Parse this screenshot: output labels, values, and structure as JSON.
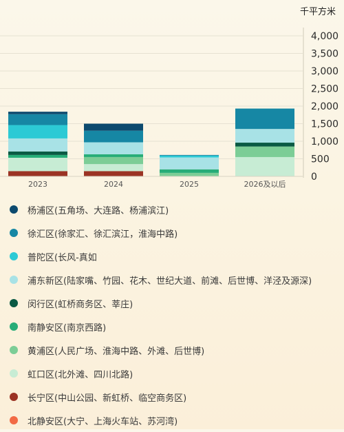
{
  "chart_data": {
    "type": "bar",
    "stacked": true,
    "unit": "千平方米",
    "categories": [
      "2023",
      "2024",
      "2025",
      "2026及以后"
    ],
    "ylim": [
      0,
      4000
    ],
    "yticks": [
      "0",
      "500",
      "1,000",
      "1,500",
      "2,000",
      "2,500",
      "3,000",
      "3,500",
      "4,000"
    ],
    "ytick_values": [
      0,
      500,
      1000,
      1500,
      2000,
      2500,
      3000,
      3500,
      4000
    ],
    "y_axis_position": "right",
    "grid": true,
    "legend_position": "bottom",
    "series": [
      {
        "name": "长宁区(中山公园、新虹桥、临空商务区)",
        "color": "#9b3324",
        "values": [
          150,
          150,
          0,
          0
        ]
      },
      {
        "name": "北静安区(大宁、上海火车站、苏河湾)",
        "color": "#f26a45",
        "values": [
          0,
          0,
          0,
          0
        ]
      },
      {
        "name": "虹口区(北外滩、四川北路)",
        "color": "#c7ecd4",
        "values": [
          380,
          200,
          0,
          550
        ]
      },
      {
        "name": "黄浦区(人民广场、淮海中路、外滩、后世博)",
        "color": "#7ccd96",
        "values": [
          0,
          200,
          100,
          300
        ]
      },
      {
        "name": "南静安区(南京西路)",
        "color": "#27ad78",
        "values": [
          80,
          80,
          100,
          0
        ]
      },
      {
        "name": "闵行区(虹桥商务区、莘庄)",
        "color": "#0a5a44",
        "values": [
          100,
          0,
          0,
          110
        ]
      },
      {
        "name": "浦东新区(陆家嘴、竹园、花木、世纪大道、前滩、后世博、洋泾及源深)",
        "color": "#a8e2e6",
        "values": [
          370,
          340,
          340,
          390
        ]
      },
      {
        "name": "普陀区(长风-真如",
        "color": "#2ccad5",
        "values": [
          380,
          0,
          50,
          0
        ]
      },
      {
        "name": "徐汇区(徐家汇、徐汇滨江，淮海中路)",
        "color": "#1687a4",
        "values": [
          310,
          330,
          20,
          580
        ]
      },
      {
        "name": "杨浦区(五角场、大连路、杨浦滨江)",
        "color": "#0c4a6e",
        "values": [
          70,
          200,
          0,
          0
        ]
      }
    ]
  },
  "legend_order": [
    {
      "name": "杨浦区(五角场、大连路、杨浦滨江)",
      "color": "#0c4a6e"
    },
    {
      "name": "徐汇区(徐家汇、徐汇滨江，淮海中路)",
      "color": "#1687a4"
    },
    {
      "name": "普陀区(长风-真如",
      "color": "#2ccad5"
    },
    {
      "name": "浦东新区(陆家嘴、竹园、花木、世纪大道、前滩、后世博、洋泾及源深)",
      "color": "#a8e2e6"
    },
    {
      "name": "闵行区(虹桥商务区、莘庄)",
      "color": "#0a5a44"
    },
    {
      "name": "南静安区(南京西路)",
      "color": "#27ad78"
    },
    {
      "name": "黄浦区(人民广场、淮海中路、外滩、后世博)",
      "color": "#7ccd96"
    },
    {
      "name": "虹口区(北外滩、四川北路)",
      "color": "#c7ecd4"
    },
    {
      "name": "长宁区(中山公园、新虹桥、临空商务区)",
      "color": "#9b3324"
    },
    {
      "name": "北静安区(大宁、上海火车站、苏河湾)",
      "color": "#f26a45"
    }
  ]
}
